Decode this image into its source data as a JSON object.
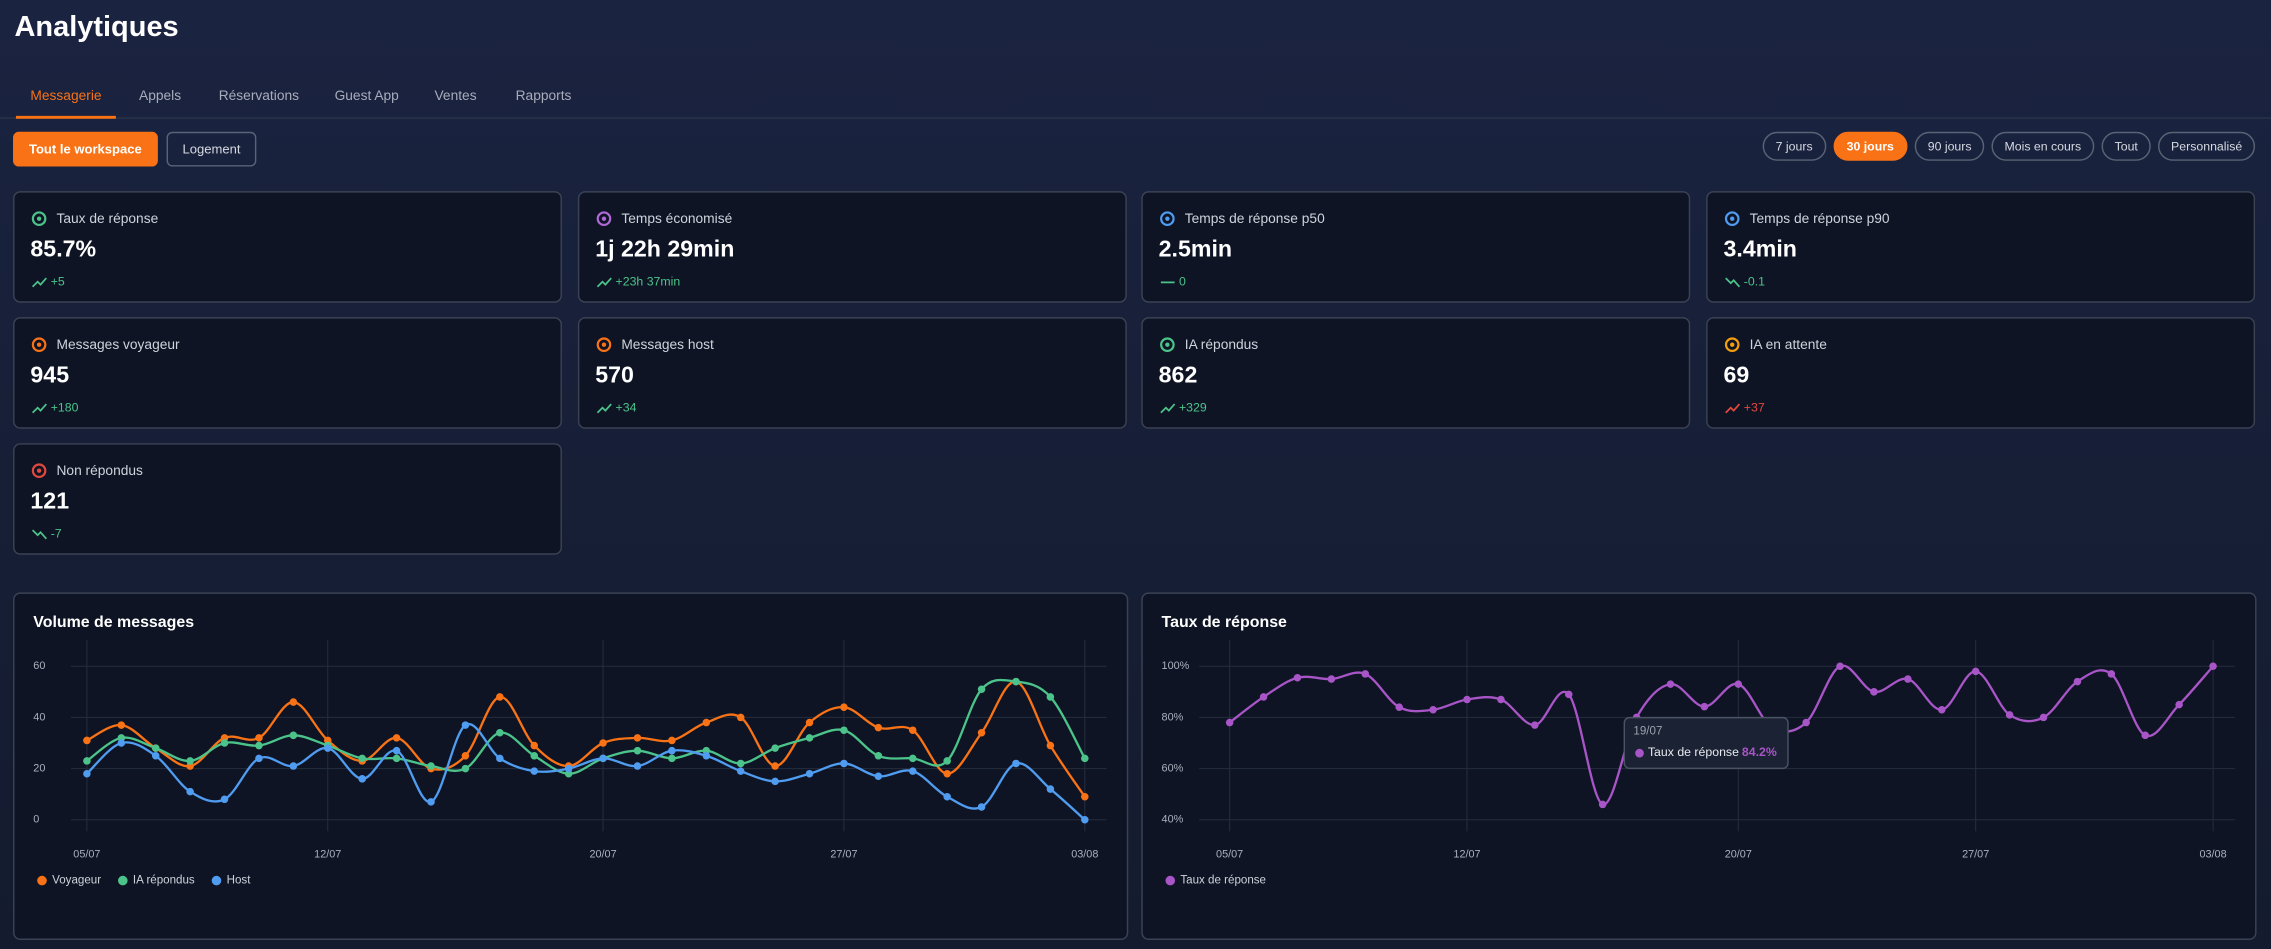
{
  "header": {
    "title": "Analytiques"
  },
  "tabs": {
    "items": [
      "Messagerie",
      "Appels",
      "Réservations",
      "Guest App",
      "Ventes",
      "Rapports"
    ],
    "active": 0
  },
  "scope": {
    "items": [
      "Tout le workspace",
      "Logement"
    ],
    "active": 0
  },
  "ranges": {
    "items": [
      "7 jours",
      "30 jours",
      "90 jours",
      "Mois en cours",
      "Tout",
      "Personnalisé"
    ],
    "active": 1
  },
  "kpis": [
    {
      "label": "Taux de réponse",
      "value": "85.7%",
      "delta": "+5",
      "trend": "up",
      "tone": "good",
      "icon_color": "#4cc38a"
    },
    {
      "label": "Temps économisé",
      "value": "1j 22h 29min",
      "delta": "+23h 37min",
      "trend": "up",
      "tone": "good",
      "icon_color": "#b067d6"
    },
    {
      "label": "Temps de réponse p50",
      "value": "2.5min",
      "delta": "0",
      "trend": "flat",
      "tone": "good",
      "icon_color": "#4f9cf0"
    },
    {
      "label": "Temps de réponse p90",
      "value": "3.4min",
      "delta": "-0.1",
      "trend": "down",
      "tone": "good",
      "icon_color": "#4f9cf0"
    },
    {
      "label": "Messages voyageur",
      "value": "945",
      "delta": "+180",
      "trend": "up",
      "tone": "good",
      "icon_color": "#f97316"
    },
    {
      "label": "Messages host",
      "value": "570",
      "delta": "+34",
      "trend": "up",
      "tone": "good",
      "icon_color": "#f97316"
    },
    {
      "label": "IA répondus",
      "value": "862",
      "delta": "+329",
      "trend": "up",
      "tone": "good",
      "icon_color": "#4cc38a"
    },
    {
      "label": "IA en attente",
      "value": "69",
      "delta": "+37",
      "trend": "up",
      "tone": "bad",
      "icon_color": "#f59e0b"
    },
    {
      "label": "Non répondus",
      "value": "121",
      "delta": "-7",
      "trend": "down",
      "tone": "good",
      "icon_color": "#e2483d"
    }
  ],
  "charts": [
    {
      "type": "line",
      "title": "Volume de messages",
      "categories": [
        "05/07",
        null,
        null,
        null,
        null,
        null,
        null,
        "12/07",
        null,
        null,
        null,
        null,
        null,
        null,
        null,
        "20/07",
        null,
        null,
        null,
        null,
        null,
        null,
        "27/07",
        null,
        null,
        null,
        null,
        null,
        null,
        "03/08"
      ],
      "series": [
        {
          "name": "Voyageur",
          "color": "#f97316",
          "values": [
            31,
            37,
            28,
            21,
            32,
            32,
            46,
            31,
            23,
            32,
            20,
            25,
            48,
            29,
            21,
            30,
            32,
            31,
            38,
            40,
            21,
            38,
            44,
            36,
            35,
            18,
            34,
            54,
            29,
            9
          ]
        },
        {
          "name": "IA répondus",
          "color": "#4cc38a",
          "values": [
            23,
            32,
            28,
            23,
            30,
            29,
            33,
            29,
            24,
            24,
            21,
            20,
            34,
            25,
            18,
            24,
            27,
            24,
            27,
            22,
            28,
            32,
            35,
            25,
            24,
            23,
            51,
            54,
            48,
            24
          ]
        },
        {
          "name": "Host",
          "color": "#4f9cf0",
          "values": [
            18,
            30,
            25,
            11,
            8,
            24,
            21,
            28,
            16,
            27,
            7,
            37,
            24,
            19,
            20,
            24,
            21,
            27,
            25,
            19,
            15,
            18,
            22,
            17,
            19,
            9,
            5,
            22,
            12,
            0
          ]
        }
      ],
      "ylim": [
        0,
        60
      ],
      "yticks": [
        0,
        20,
        40,
        60
      ],
      "grid": true,
      "legend": "bottom-left"
    },
    {
      "type": "line",
      "title": "Taux de réponse",
      "categories": [
        "05/07",
        null,
        null,
        null,
        null,
        null,
        null,
        "12/07",
        null,
        null,
        null,
        null,
        null,
        null,
        null,
        "20/07",
        null,
        null,
        null,
        null,
        null,
        null,
        "27/07",
        null,
        null,
        null,
        null,
        null,
        null,
        "03/08"
      ],
      "series": [
        {
          "name": "Taux de réponse",
          "color": "#a855c7",
          "values": [
            78,
            88,
            95.5,
            95,
            97,
            84,
            83,
            87,
            87,
            77,
            89,
            46,
            80,
            93,
            84.2,
            93,
            76,
            78,
            100,
            90,
            95,
            83,
            98,
            81,
            80,
            94,
            97,
            73,
            85,
            100
          ]
        }
      ],
      "ylim": [
        40,
        100
      ],
      "yticks": [
        {
          "value": 40,
          "label": "40%"
        },
        {
          "value": 60,
          "label": "60%"
        },
        {
          "value": 80,
          "label": "80%"
        },
        {
          "value": 100,
          "label": "100%"
        }
      ],
      "grid": true,
      "legend": "bottom-left",
      "tooltip": {
        "index": 14,
        "title": "19/07",
        "name": "Taux de réponse",
        "value": "84.2%"
      }
    }
  ]
}
